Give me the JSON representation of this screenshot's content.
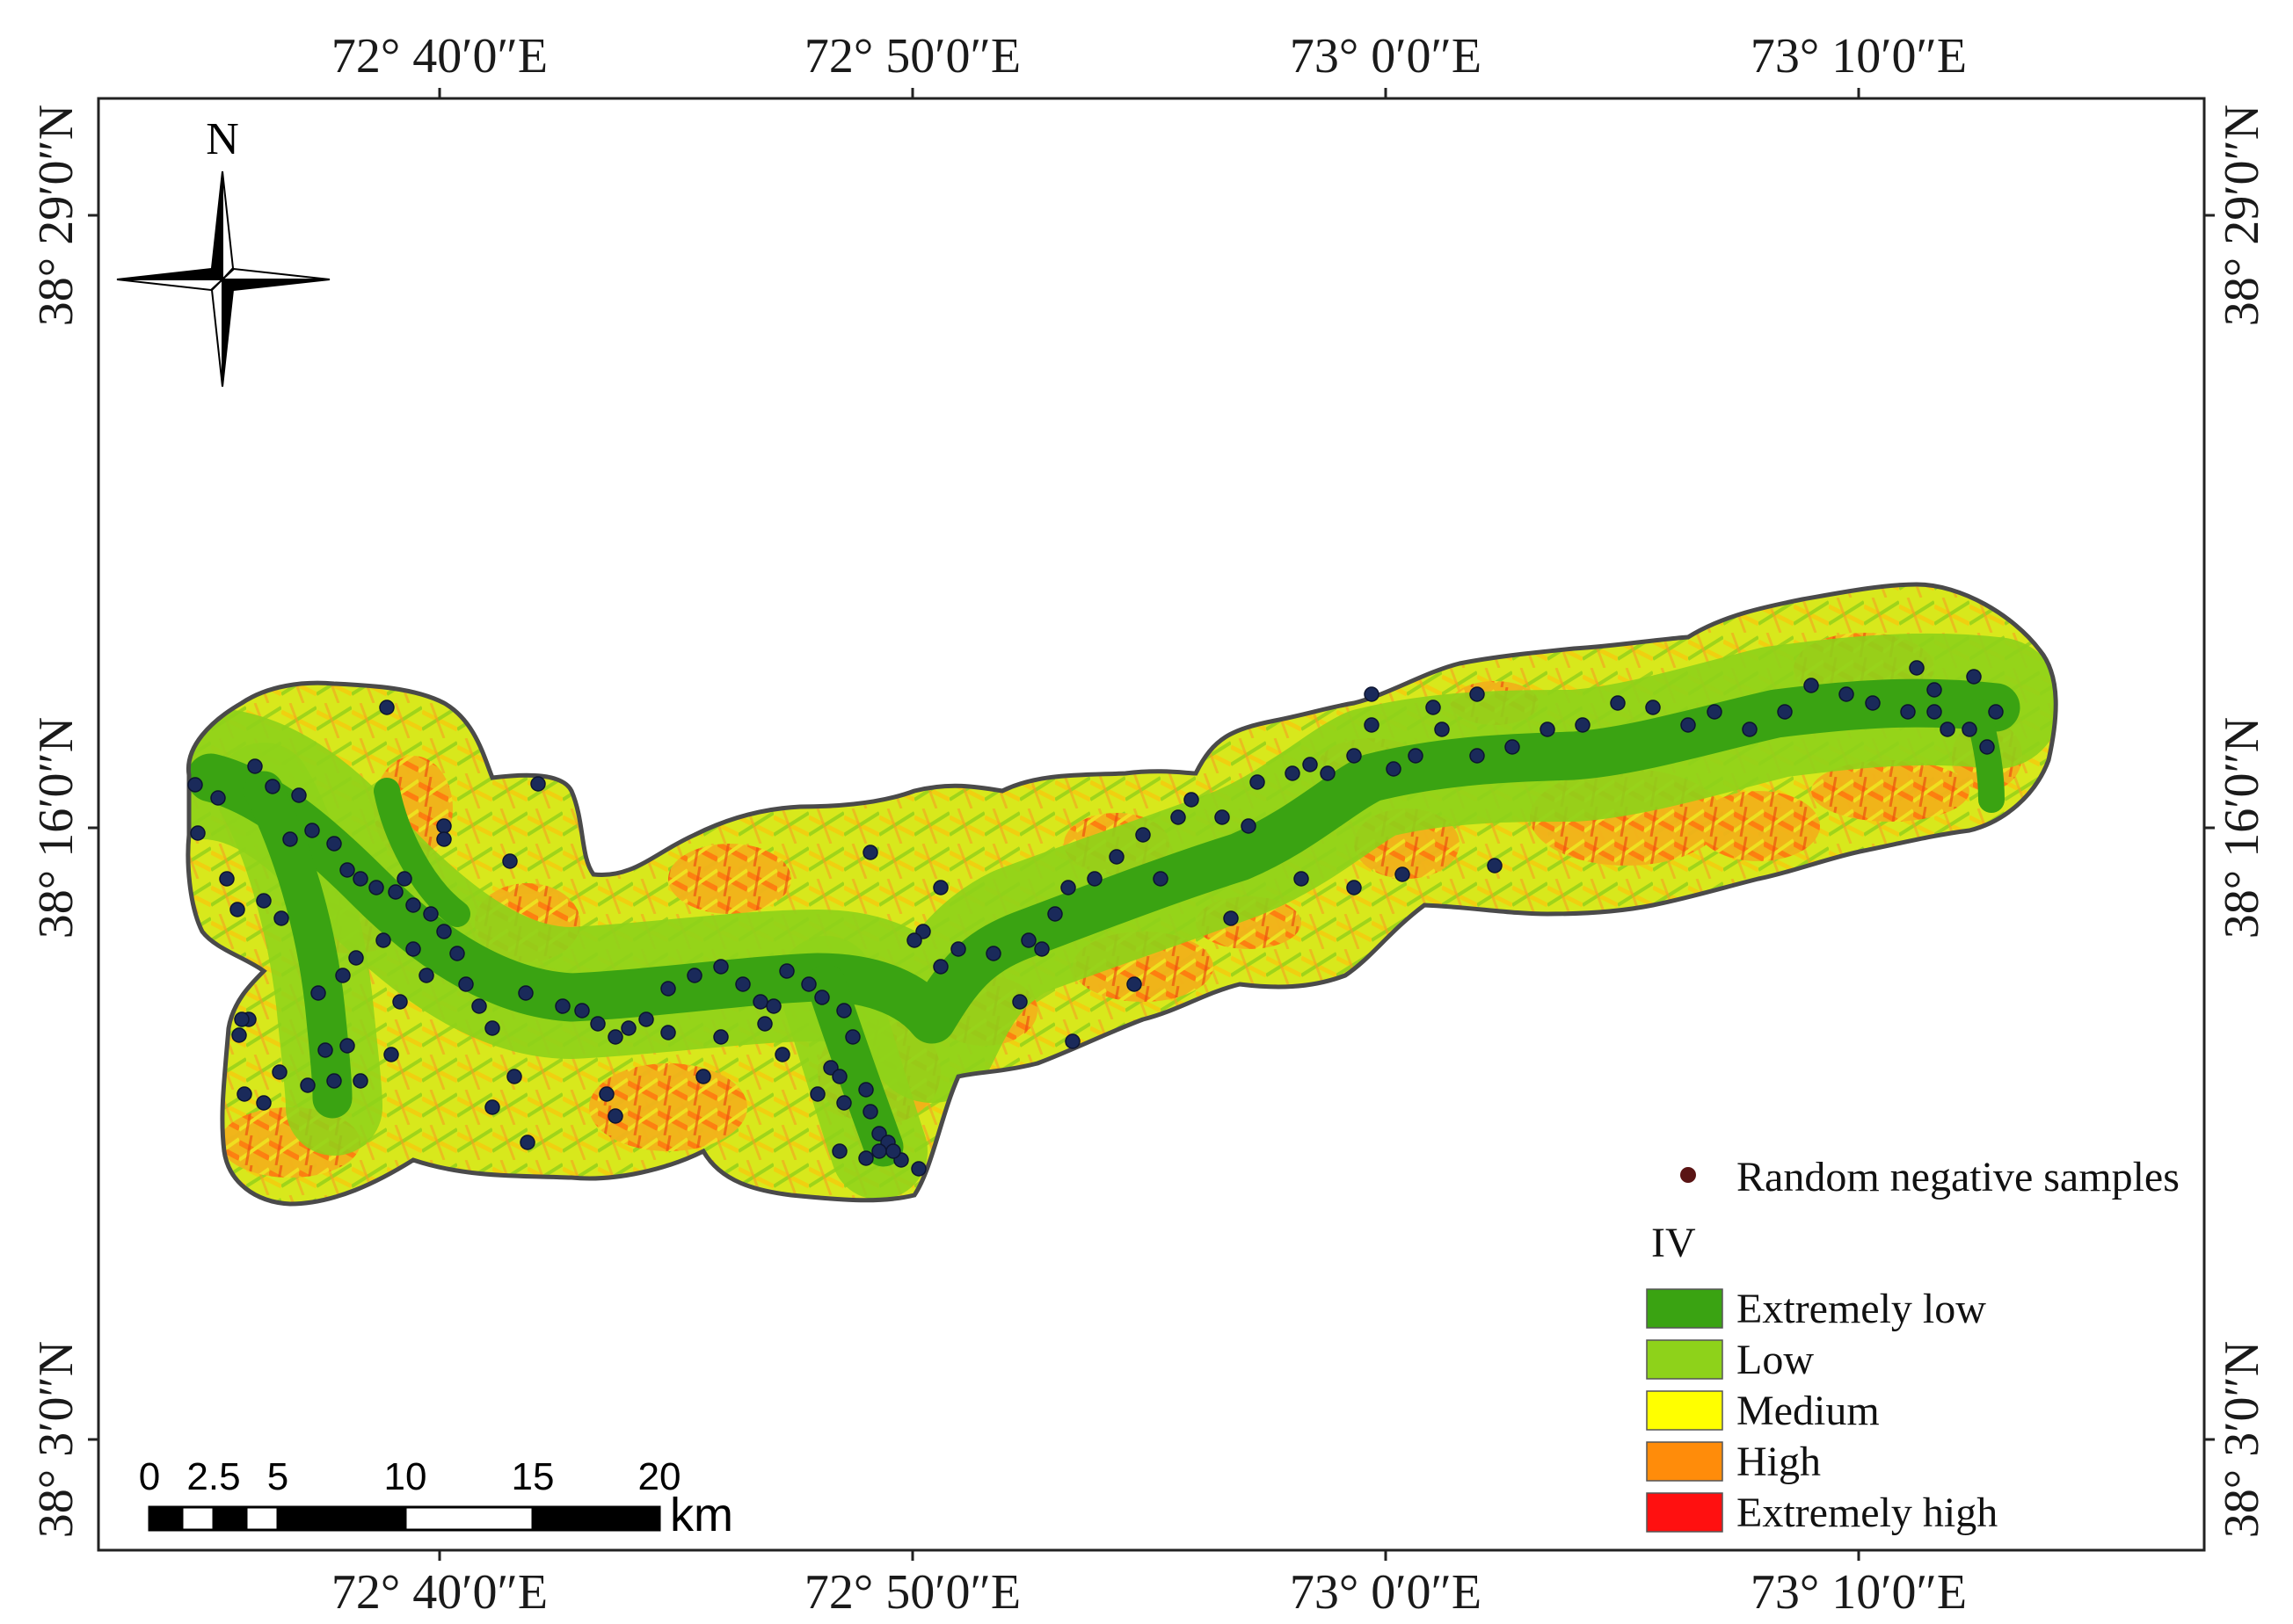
{
  "map": {
    "north_label": "N",
    "top_longitude_labels": [
      "72° 40′0″E",
      "72° 50′0″E",
      "73° 0′0″E",
      "73° 10′0″E"
    ],
    "bottom_longitude_labels": [
      "72° 40′0″E",
      "72° 50′0″E",
      "73° 0′0″E",
      "73° 10′0″E"
    ],
    "left_latitude_labels": [
      "38° 29′0″N",
      "38° 16′0″N",
      "38° 3′0″N"
    ],
    "right_latitude_labels": [
      "38° 29′0″N",
      "38° 16′0″N",
      "38° 3′0″N"
    ]
  },
  "scale_bar": {
    "ticks": [
      "0",
      "2.5",
      "5",
      "10",
      "15",
      "20"
    ],
    "unit": "km"
  },
  "legend": {
    "point_label": "Random negative samples",
    "point_color": "#5a1414",
    "class_title": "IV",
    "classes": [
      {
        "label": "Extremely  low",
        "color": "#3aa312"
      },
      {
        "label": "Low",
        "color": "#8ed21a"
      },
      {
        "label": "Medium",
        "color": "#ffff00"
      },
      {
        "label": "High",
        "color": "#ff8c0a"
      },
      {
        "label": "Extremely  high",
        "color": "#ff1010"
      }
    ]
  },
  "colors": {
    "sample_dot": "#1a2a5a",
    "outline": "#4a4a4a"
  }
}
